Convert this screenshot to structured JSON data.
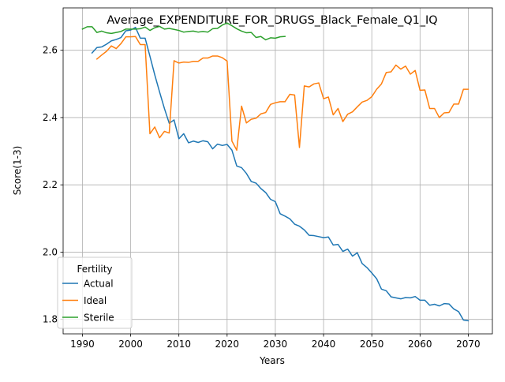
{
  "chart_data": {
    "type": "line",
    "title": "Average_EXPENDITURE_FOR_DRUGS_Black_Female_Q1_IQ",
    "xlabel": "Years",
    "ylabel": "Score(1-3)",
    "xlim": [
      1986,
      2075
    ],
    "ylim": [
      1.757,
      2.726
    ],
    "xticks": [
      1990,
      2000,
      2010,
      2020,
      2030,
      2040,
      2050,
      2060,
      2070
    ],
    "yticks": [
      1.8,
      2.0,
      2.2,
      2.4,
      2.6
    ],
    "grid": true,
    "legend": {
      "title": "Fertility",
      "placement": "lower-left"
    },
    "series": [
      {
        "name": "Actual",
        "color": "#1f77b4",
        "x": [
          1992,
          1993,
          1994,
          1995,
          1996,
          1997,
          1998,
          1999,
          2000,
          2001,
          2002,
          2003,
          2004,
          2005,
          2006,
          2007,
          2008,
          2009,
          2010,
          2011,
          2012,
          2013,
          2014,
          2015,
          2016,
          2017,
          2018,
          2019,
          2020,
          2021,
          2022,
          2023,
          2024,
          2025,
          2026,
          2027,
          2028,
          2029,
          2030,
          2031,
          2032,
          2033,
          2034,
          2035,
          2036,
          2037,
          2038,
          2039,
          2040,
          2041,
          2042,
          2043,
          2044,
          2045,
          2046,
          2047,
          2048,
          2049,
          2050,
          2051,
          2052,
          2053,
          2054,
          2055,
          2056,
          2057,
          2058,
          2059,
          2060,
          2061,
          2062,
          2063,
          2064,
          2065,
          2066,
          2067,
          2068,
          2069,
          2070
        ],
        "values": [
          2.592,
          2.608,
          2.61,
          2.618,
          2.628,
          2.632,
          2.638,
          2.658,
          2.66,
          2.668,
          2.636,
          2.636,
          2.582,
          2.527,
          2.476,
          2.427,
          2.383,
          2.393,
          2.337,
          2.352,
          2.325,
          2.33,
          2.326,
          2.331,
          2.328,
          2.307,
          2.321,
          2.317,
          2.32,
          2.303,
          2.256,
          2.251,
          2.234,
          2.21,
          2.205,
          2.189,
          2.177,
          2.157,
          2.15,
          2.114,
          2.107,
          2.099,
          2.083,
          2.077,
          2.066,
          2.05,
          2.049,
          2.046,
          2.043,
          2.045,
          2.021,
          2.023,
          2.002,
          2.009,
          1.988,
          1.998,
          1.966,
          1.954,
          1.938,
          1.921,
          1.89,
          1.885,
          1.867,
          1.864,
          1.861,
          1.865,
          1.864,
          1.868,
          1.857,
          1.857,
          1.842,
          1.845,
          1.84,
          1.847,
          1.846,
          1.831,
          1.823,
          1.798,
          1.796
        ]
      },
      {
        "name": "Ideal",
        "color": "#ff7f0e",
        "x": [
          1993,
          1994,
          1995,
          1996,
          1997,
          1998,
          1999,
          2000,
          2001,
          2002,
          2003,
          2004,
          2005,
          2006,
          2007,
          2008,
          2009,
          2010,
          2011,
          2012,
          2013,
          2014,
          2015,
          2016,
          2017,
          2018,
          2019,
          2020,
          2021,
          2022,
          2023,
          2024,
          2025,
          2026,
          2027,
          2028,
          2029,
          2030,
          2031,
          2032,
          2033,
          2034,
          2035,
          2036,
          2037,
          2038,
          2039,
          2040,
          2041,
          2042,
          2043,
          2044,
          2045,
          2046,
          2047,
          2048,
          2049,
          2050,
          2051,
          2052,
          2053,
          2054,
          2055,
          2056,
          2057,
          2058,
          2059,
          2060,
          2061,
          2062,
          2063,
          2064,
          2065,
          2066,
          2067,
          2068,
          2069,
          2070
        ],
        "values": [
          2.574,
          2.586,
          2.597,
          2.613,
          2.605,
          2.62,
          2.64,
          2.64,
          2.641,
          2.617,
          2.617,
          2.352,
          2.372,
          2.34,
          2.359,
          2.354,
          2.569,
          2.562,
          2.565,
          2.564,
          2.567,
          2.567,
          2.577,
          2.577,
          2.583,
          2.583,
          2.578,
          2.568,
          2.33,
          2.303,
          2.434,
          2.384,
          2.395,
          2.398,
          2.411,
          2.415,
          2.439,
          2.444,
          2.447,
          2.447,
          2.469,
          2.467,
          2.311,
          2.494,
          2.491,
          2.5,
          2.503,
          2.456,
          2.461,
          2.408,
          2.427,
          2.388,
          2.41,
          2.417,
          2.432,
          2.446,
          2.451,
          2.462,
          2.484,
          2.5,
          2.534,
          2.536,
          2.556,
          2.544,
          2.553,
          2.529,
          2.54,
          2.481,
          2.482,
          2.427,
          2.427,
          2.4,
          2.414,
          2.415,
          2.44,
          2.44,
          2.484,
          2.484
        ]
      },
      {
        "name": "Sterile",
        "color": "#2ca02c",
        "x": [
          1990,
          1991,
          1992,
          1993,
          1994,
          1995,
          1996,
          1997,
          1998,
          1999,
          2000,
          2001,
          2002,
          2003,
          2004,
          2005,
          2006,
          2007,
          2008,
          2009,
          2010,
          2011,
          2012,
          2013,
          2014,
          2015,
          2016,
          2017,
          2018,
          2019,
          2020,
          2021,
          2022,
          2023,
          2024,
          2025,
          2026,
          2027,
          2028,
          2029,
          2030,
          2031,
          2032
        ],
        "values": [
          2.663,
          2.67,
          2.67,
          2.653,
          2.657,
          2.652,
          2.65,
          2.653,
          2.656,
          2.663,
          2.663,
          2.663,
          2.664,
          2.669,
          2.659,
          2.667,
          2.671,
          2.663,
          2.665,
          2.662,
          2.659,
          2.654,
          2.656,
          2.657,
          2.654,
          2.656,
          2.654,
          2.664,
          2.665,
          2.675,
          2.681,
          2.673,
          2.664,
          2.657,
          2.652,
          2.653,
          2.638,
          2.641,
          2.631,
          2.637,
          2.636,
          2.64,
          2.641
        ]
      }
    ]
  }
}
